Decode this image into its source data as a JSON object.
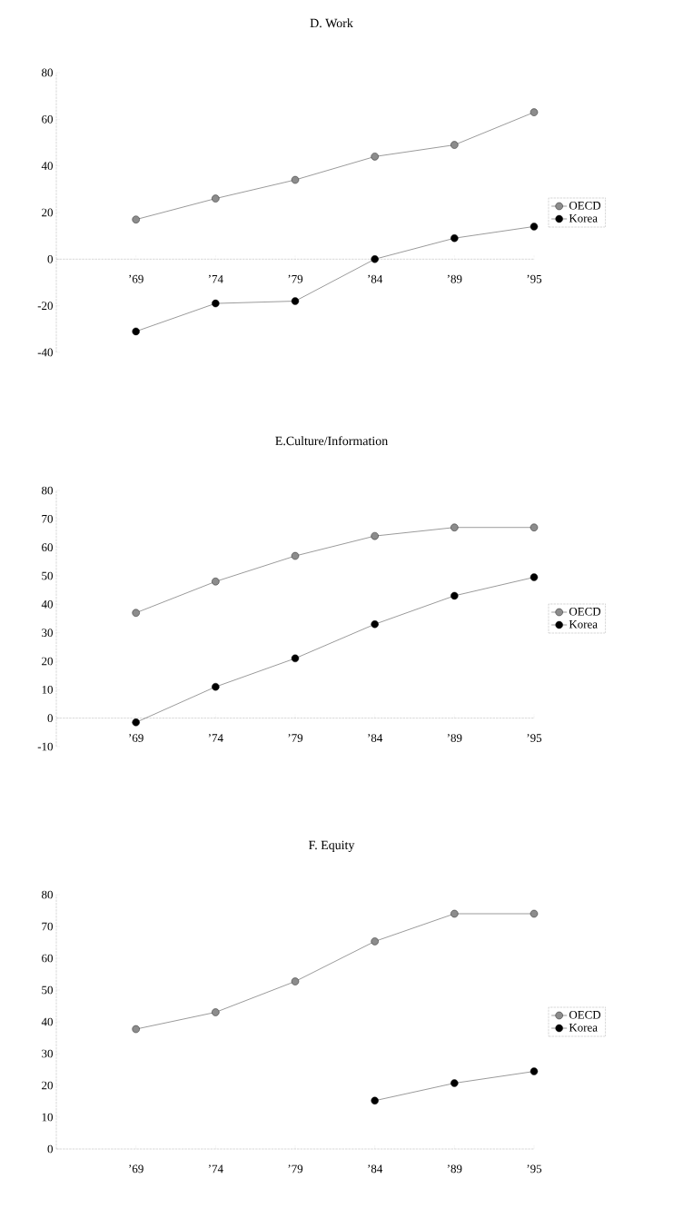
{
  "chart_data": [
    {
      "type": "line",
      "title": "D. Work",
      "categories": [
        "’69",
        "’74",
        "’79",
        "’84",
        "’89",
        "’95"
      ],
      "series": [
        {
          "name": "OECD",
          "color": "#000000",
          "values": [
            17,
            26,
            34,
            44,
            49,
            63
          ]
        },
        {
          "name": "Korea",
          "color": "#000000",
          "values": [
            -31,
            -19,
            -18,
            0,
            9,
            14
          ]
        }
      ],
      "ylim": [
        -40,
        80
      ],
      "yticks": [
        -40,
        -20,
        0,
        20,
        40,
        60,
        80
      ],
      "legend": "right",
      "marker": "circle",
      "line_style": "solid"
    },
    {
      "type": "line",
      "title": "E.Culture/Information",
      "categories": [
        "’69",
        "’74",
        "’79",
        "’84",
        "’89",
        "’95"
      ],
      "series": [
        {
          "name": "OECD",
          "color": "#000000",
          "values": [
            37,
            48,
            57,
            64,
            67,
            67
          ]
        },
        {
          "name": "Korea",
          "color": "#000000",
          "values": [
            -1.5,
            11,
            21,
            33,
            43,
            49.5
          ]
        }
      ],
      "ylim": [
        -10,
        80
      ],
      "yticks": [
        -10,
        0,
        10,
        20,
        30,
        40,
        50,
        60,
        70,
        80
      ],
      "legend": "right",
      "marker": "circle",
      "line_style": "solid"
    },
    {
      "type": "line",
      "title": "F. Equity",
      "categories": [
        "’69",
        "’74",
        "’79",
        "’84",
        "’89",
        "’95"
      ],
      "series": [
        {
          "name": "OECD",
          "color": "#000000",
          "values": [
            37.7,
            43,
            52.7,
            65.3,
            74,
            74
          ]
        },
        {
          "name": "Korea",
          "color": "#000000",
          "values": [
            null,
            null,
            null,
            15.2,
            20.7,
            24.4
          ]
        }
      ],
      "ylim": [
        0,
        80
      ],
      "yticks": [
        0,
        10,
        20,
        30,
        40,
        50,
        60,
        70,
        80
      ],
      "legend": "right",
      "marker": "circle",
      "line_style": "solid"
    }
  ]
}
